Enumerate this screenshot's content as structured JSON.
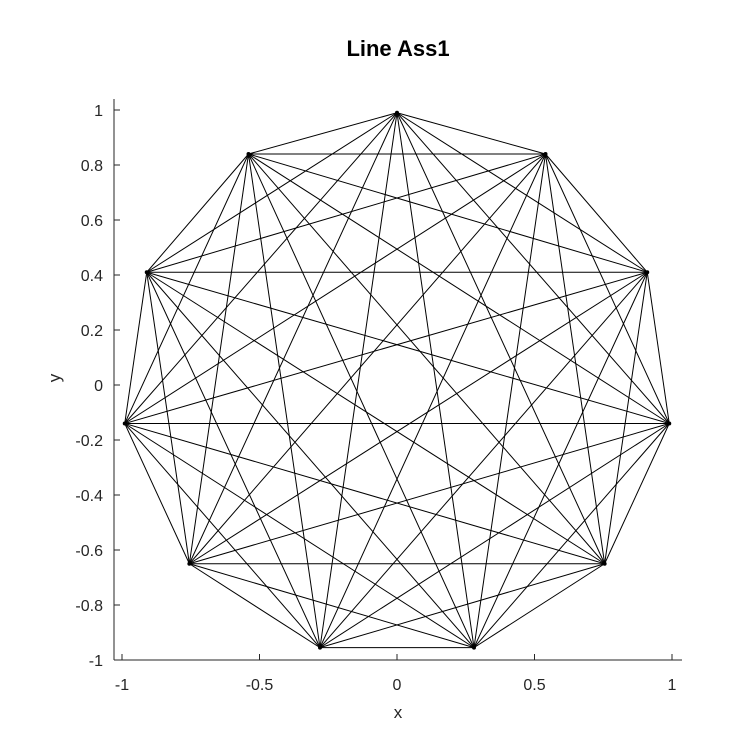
{
  "chart_data": {
    "type": "line",
    "title": "Line Ass1",
    "xlabel": "x",
    "ylabel": "y",
    "xlim": [
      -1,
      1
    ],
    "ylim": [
      -1,
      1
    ],
    "xticks": [
      -1,
      -0.5,
      0,
      0.5,
      1
    ],
    "xtick_labels": [
      "-1",
      "-0.5",
      "0",
      "0.5",
      "1"
    ],
    "yticks": [
      1,
      0.8,
      0.6,
      0.4,
      0.2,
      0,
      -0.2,
      -0.4,
      -0.6,
      -0.8,
      -1
    ],
    "ytick_labels": [
      "1",
      "0.8",
      "0.6",
      "0.4",
      "0.2",
      "0",
      "-0.2",
      "-0.4",
      "-0.6",
      "-0.8",
      "-1"
    ],
    "grid": false,
    "legend": "none",
    "vertices": [
      {
        "x": 0,
        "y": 0.99
      },
      {
        "x": 0.54,
        "y": 0.84
      },
      {
        "x": 0.91,
        "y": 0.41
      },
      {
        "x": 0.99,
        "y": -0.14
      },
      {
        "x": 0.755,
        "y": -0.65
      },
      {
        "x": 0.28,
        "y": -0.955
      },
      {
        "x": -0.28,
        "y": -0.955
      },
      {
        "x": -0.755,
        "y": -0.65
      },
      {
        "x": -0.99,
        "y": -0.14
      },
      {
        "x": -0.91,
        "y": 0.41
      },
      {
        "x": -0.54,
        "y": 0.84
      }
    ],
    "segments": "all vertex pairs connected",
    "line_color": "#000000",
    "marker": "point"
  }
}
